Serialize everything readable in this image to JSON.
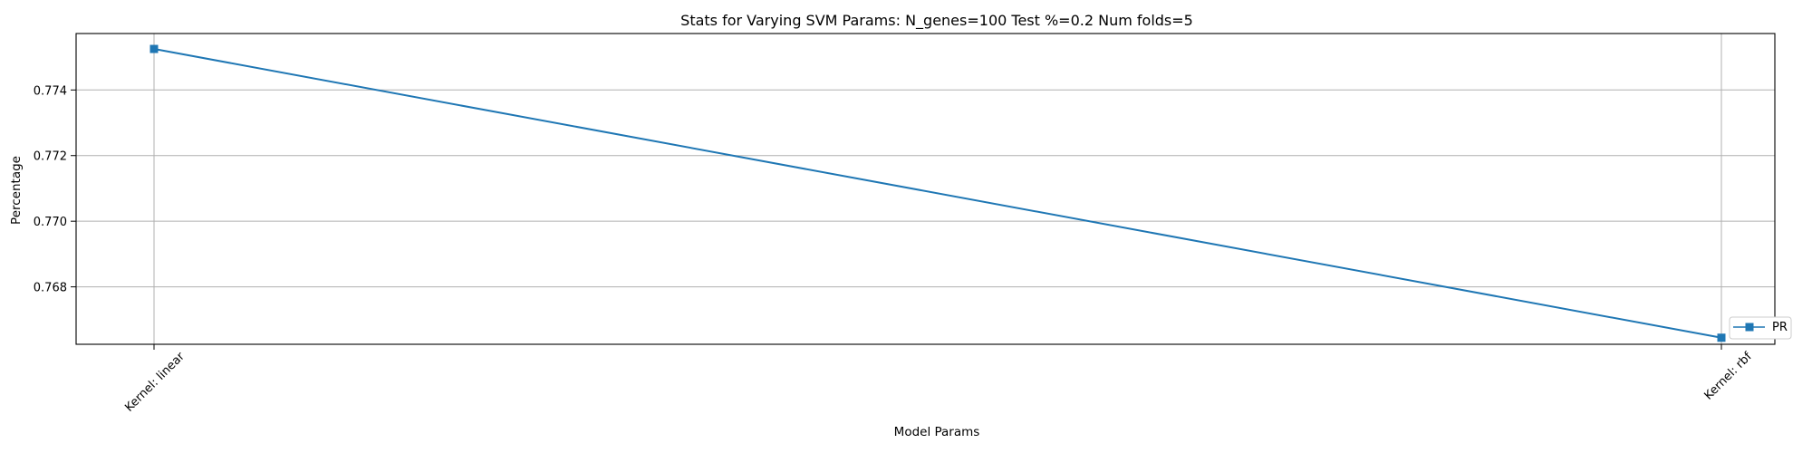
{
  "chart_data": {
    "type": "line",
    "title": "Stats for Varying SVM Params: N_genes=100 Test %=0.2 Num folds=5",
    "xlabel": "Model Params",
    "ylabel": "Percentage",
    "categories": [
      "Kernel: linear",
      "Kernel: rbf"
    ],
    "series": [
      {
        "name": "PR",
        "values": [
          0.77525,
          0.76645
        ],
        "color": "#1f77b4",
        "marker": "square"
      }
    ],
    "ylim": [
      0.76625,
      0.77572
    ],
    "yticks": [
      {
        "value": 0.768,
        "label": "0.768"
      },
      {
        "value": 0.77,
        "label": "0.770"
      },
      {
        "value": 0.772,
        "label": "0.772"
      },
      {
        "value": 0.774,
        "label": "0.774"
      }
    ],
    "grid": true,
    "legend_position": "lower-right"
  }
}
